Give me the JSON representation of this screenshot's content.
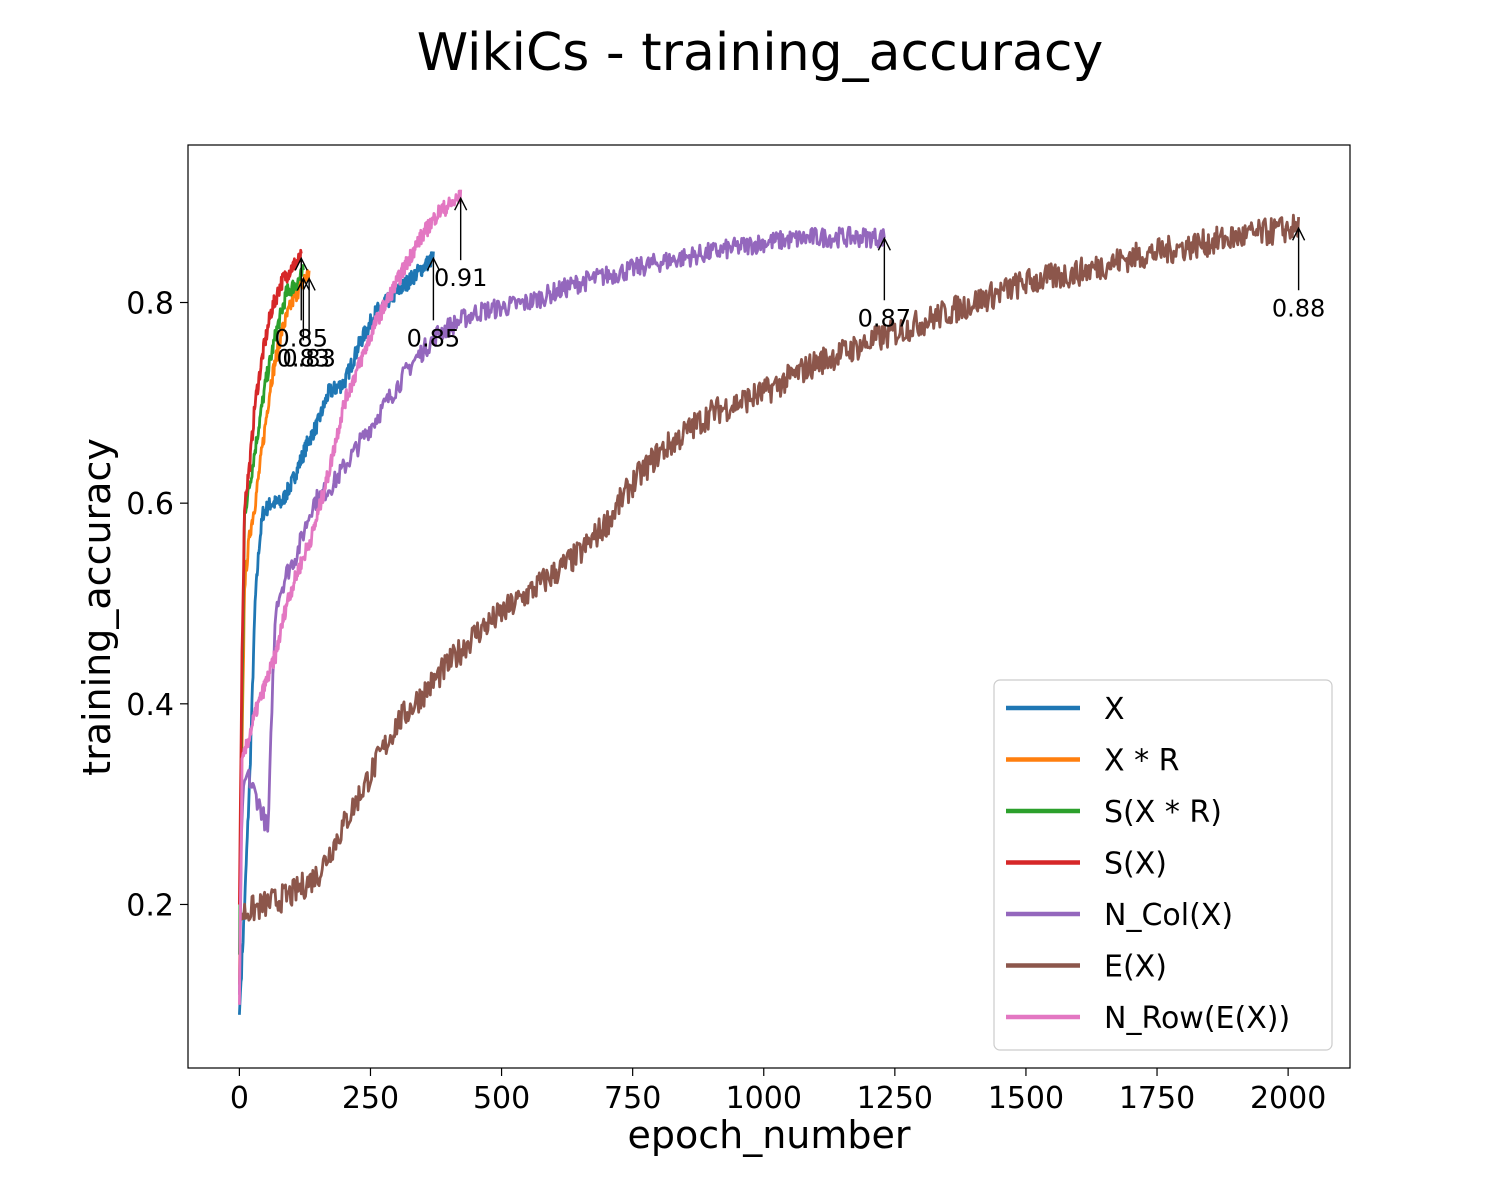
{
  "chart_data": {
    "type": "line",
    "title": "WikiCs - training_accuracy",
    "xlabel": "epoch_number",
    "ylabel": "training_accuracy",
    "xlim": [
      -98,
      2118
    ],
    "ylim": [
      0.037,
      0.957
    ],
    "xticks": [
      0,
      250,
      500,
      750,
      1000,
      1250,
      1500,
      1750,
      2000
    ],
    "xtick_labels": [
      "0",
      "250",
      "500",
      "750",
      "1000",
      "1250",
      "1500",
      "1750",
      "2000"
    ],
    "yticks": [
      0.2,
      0.4,
      0.6,
      0.8
    ],
    "ytick_labels": [
      "0.2",
      "0.4",
      "0.6",
      "0.8"
    ],
    "grid": false,
    "legend_position": "lower-right",
    "series": [
      {
        "name": "X",
        "color": "#1f77b4",
        "noise": 0.008,
        "points": [
          [
            0,
            0.09
          ],
          [
            10,
            0.2
          ],
          [
            20,
            0.33
          ],
          [
            30,
            0.5
          ],
          [
            38,
            0.56
          ],
          [
            45,
            0.59
          ],
          [
            60,
            0.6
          ],
          [
            80,
            0.6
          ],
          [
            100,
            0.62
          ],
          [
            130,
            0.66
          ],
          [
            150,
            0.68
          ],
          [
            170,
            0.71
          ],
          [
            200,
            0.72
          ],
          [
            230,
            0.76
          ],
          [
            260,
            0.79
          ],
          [
            300,
            0.81
          ],
          [
            340,
            0.83
          ],
          [
            370,
            0.845
          ]
        ],
        "peak": {
          "x": 370,
          "y": 0.85,
          "label": "0.85"
        }
      },
      {
        "name": "X * R",
        "color": "#ff7f0e",
        "noise": 0.008,
        "points": [
          [
            0,
            0.12
          ],
          [
            5,
            0.35
          ],
          [
            10,
            0.52
          ],
          [
            20,
            0.57
          ],
          [
            30,
            0.6
          ],
          [
            45,
            0.66
          ],
          [
            60,
            0.72
          ],
          [
            80,
            0.77
          ],
          [
            100,
            0.8
          ],
          [
            120,
            0.82
          ],
          [
            133,
            0.83
          ]
        ],
        "peak": {
          "x": 133,
          "y": 0.83,
          "label": "0.83"
        }
      },
      {
        "name": "S(X * R)",
        "color": "#2ca02c",
        "noise": 0.008,
        "points": [
          [
            0,
            0.15
          ],
          [
            5,
            0.4
          ],
          [
            10,
            0.59
          ],
          [
            20,
            0.62
          ],
          [
            35,
            0.67
          ],
          [
            50,
            0.72
          ],
          [
            70,
            0.77
          ],
          [
            90,
            0.81
          ],
          [
            110,
            0.82
          ],
          [
            122,
            0.83
          ]
        ],
        "peak": {
          "x": 122,
          "y": 0.83,
          "label": "0.83"
        }
      },
      {
        "name": "S(X)",
        "color": "#d62728",
        "noise": 0.008,
        "points": [
          [
            0,
            0.2
          ],
          [
            5,
            0.45
          ],
          [
            10,
            0.6
          ],
          [
            20,
            0.64
          ],
          [
            30,
            0.7
          ],
          [
            45,
            0.75
          ],
          [
            60,
            0.79
          ],
          [
            80,
            0.82
          ],
          [
            100,
            0.835
          ],
          [
            118,
            0.845
          ]
        ],
        "peak": {
          "x": 118,
          "y": 0.85,
          "label": "0.85"
        }
      },
      {
        "name": "N_Col(X)",
        "color": "#9467bd",
        "noise": 0.01,
        "points": [
          [
            0,
            0.11
          ],
          [
            5,
            0.3
          ],
          [
            15,
            0.33
          ],
          [
            30,
            0.31
          ],
          [
            45,
            0.29
          ],
          [
            55,
            0.27
          ],
          [
            62,
            0.4
          ],
          [
            70,
            0.5
          ],
          [
            90,
            0.53
          ],
          [
            110,
            0.55
          ],
          [
            140,
            0.6
          ],
          [
            180,
            0.62
          ],
          [
            230,
            0.66
          ],
          [
            280,
            0.7
          ],
          [
            330,
            0.74
          ],
          [
            380,
            0.77
          ],
          [
            450,
            0.79
          ],
          [
            550,
            0.8
          ],
          [
            650,
            0.82
          ],
          [
            800,
            0.84
          ],
          [
            900,
            0.85
          ],
          [
            1000,
            0.86
          ],
          [
            1100,
            0.865
          ],
          [
            1230,
            0.865
          ]
        ],
        "peak": {
          "x": 1230,
          "y": 0.87,
          "label": "0.87"
        }
      },
      {
        "name": "E(X)",
        "color": "#8c564b",
        "noise": 0.014,
        "points": [
          [
            0,
            0.19
          ],
          [
            50,
            0.2
          ],
          [
            100,
            0.21
          ],
          [
            150,
            0.23
          ],
          [
            200,
            0.28
          ],
          [
            250,
            0.33
          ],
          [
            300,
            0.38
          ],
          [
            350,
            0.41
          ],
          [
            400,
            0.44
          ],
          [
            450,
            0.47
          ],
          [
            500,
            0.49
          ],
          [
            550,
            0.51
          ],
          [
            600,
            0.53
          ],
          [
            650,
            0.55
          ],
          [
            700,
            0.58
          ],
          [
            750,
            0.62
          ],
          [
            800,
            0.65
          ],
          [
            850,
            0.67
          ],
          [
            900,
            0.69
          ],
          [
            950,
            0.7
          ],
          [
            1000,
            0.71
          ],
          [
            1100,
            0.74
          ],
          [
            1200,
            0.76
          ],
          [
            1300,
            0.78
          ],
          [
            1400,
            0.8
          ],
          [
            1500,
            0.82
          ],
          [
            1600,
            0.83
          ],
          [
            1700,
            0.845
          ],
          [
            1800,
            0.855
          ],
          [
            1900,
            0.865
          ],
          [
            2020,
            0.875
          ]
        ],
        "peak": {
          "x": 2020,
          "y": 0.88,
          "label": "0.88"
        }
      },
      {
        "name": "N_Row(E(X))",
        "color": "#e377c2",
        "noise": 0.008,
        "points": [
          [
            0,
            0.1
          ],
          [
            5,
            0.34
          ],
          [
            15,
            0.36
          ],
          [
            30,
            0.39
          ],
          [
            50,
            0.42
          ],
          [
            70,
            0.45
          ],
          [
            90,
            0.5
          ],
          [
            110,
            0.53
          ],
          [
            140,
            0.57
          ],
          [
            170,
            0.63
          ],
          [
            200,
            0.7
          ],
          [
            230,
            0.74
          ],
          [
            260,
            0.78
          ],
          [
            300,
            0.82
          ],
          [
            340,
            0.86
          ],
          [
            380,
            0.89
          ],
          [
            422,
            0.905
          ]
        ],
        "peak": {
          "x": 422,
          "y": 0.91,
          "label": "0.91"
        }
      }
    ]
  }
}
